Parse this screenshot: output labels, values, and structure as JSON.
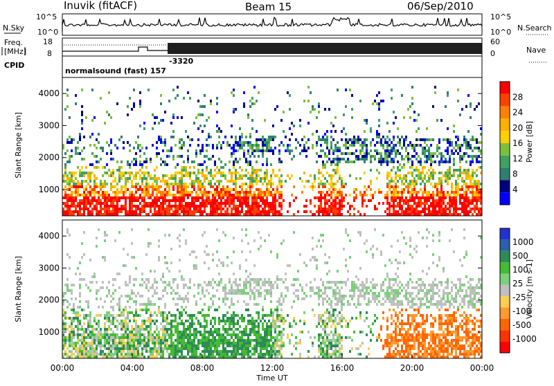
{
  "header": {
    "station": "Inuvik (fitACF)",
    "beam": "Beam 15",
    "date": "06/Sep/2010"
  },
  "noise_panel": {
    "left_label": "N.Sky",
    "left_ticks": [
      "10^5",
      "10^0"
    ],
    "right_ticks": [
      "10^5",
      "10^0"
    ],
    "right_label": "N.Search"
  },
  "freq_panel": {
    "left_label_line1": "Freq.",
    "left_label_line2": "[MHz]",
    "left_ticks": [
      "18",
      "8"
    ],
    "right_ticks": [
      "60",
      "0"
    ],
    "right_label": "Nave",
    "cpid_label": "CPID",
    "mode_text": "normalsound (fast) 157",
    "cpid_value": "-3320"
  },
  "chart_data": [
    {
      "type": "heatmap",
      "name": "power",
      "ylabel": "Slant Range [km]",
      "xlabel": "Time UT",
      "x_ticks": [
        "00:00",
        "04:00",
        "08:00",
        "12:00",
        "16:00",
        "20:00",
        "00:00"
      ],
      "x_range_hours": [
        0,
        24
      ],
      "y_ticks": [
        1000,
        2000,
        3000,
        4000
      ],
      "y_range_km": [
        180,
        4500
      ],
      "colorbar": {
        "label": "Power [dB]",
        "ticks": [
          "28",
          "24",
          "20",
          "16",
          "12",
          "8",
          "4"
        ],
        "colors": [
          "#ff0000",
          "#ff4000",
          "#ff8000",
          "#ffb000",
          "#ffd000",
          "#7cc03a",
          "#40a060",
          "#2f7f6f",
          "#00007f",
          "#0000ff"
        ]
      }
    },
    {
      "type": "heatmap",
      "name": "velocity",
      "ylabel": "Slant Range [km]",
      "xlabel": "Time UT",
      "x_ticks": [
        "00:00",
        "04:00",
        "08:00",
        "12:00",
        "16:00",
        "20:00",
        "00:00"
      ],
      "x_range_hours": [
        0,
        24
      ],
      "y_ticks": [
        1000,
        2000,
        3000,
        4000
      ],
      "y_range_km": [
        180,
        4500
      ],
      "colorbar": {
        "label": "Velocity [m s-1]",
        "ticks": [
          "1000",
          "500",
          "100",
          "25",
          "-25",
          "-100",
          "-500",
          "-1000"
        ],
        "colors": [
          "#2233cc",
          "#2a5faa",
          "#2e8b57",
          "#44bb33",
          "#7cd07c",
          "#c0c0c0",
          "#ffcc55",
          "#ff9930",
          "#ff6600",
          "#ff3300",
          "#ff0000"
        ]
      }
    }
  ],
  "x_axis": {
    "label": "Time UT",
    "ticks": [
      "00:00",
      "04:00",
      "08:00",
      "12:00",
      "16:00",
      "20:00",
      "00:00"
    ]
  }
}
